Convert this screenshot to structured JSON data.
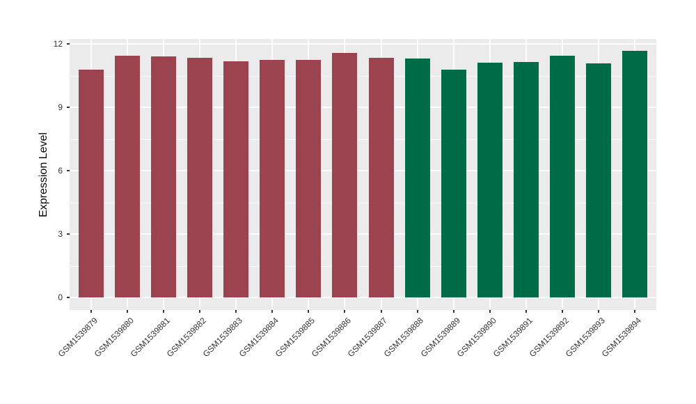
{
  "chart_data": {
    "type": "bar",
    "title": "",
    "xlabel": "",
    "ylabel": "Expression Level",
    "categories": [
      "GSM1539879",
      "GSM1539880",
      "GSM1539881",
      "GSM1539882",
      "GSM1539883",
      "GSM1539884",
      "GSM1539885",
      "GSM1539886",
      "GSM1539887",
      "GSM1539888",
      "GSM1539889",
      "GSM1539890",
      "GSM1539891",
      "GSM1539892",
      "GSM1539893",
      "GSM1539894"
    ],
    "values": [
      10.79,
      11.44,
      11.42,
      11.34,
      11.18,
      11.23,
      11.23,
      11.56,
      11.34,
      11.31,
      10.79,
      11.12,
      11.15,
      11.45,
      11.07,
      11.67
    ],
    "bar_colors": [
      "#9B4450",
      "#9B4450",
      "#9B4450",
      "#9B4450",
      "#9B4450",
      "#9B4450",
      "#9B4450",
      "#9B4450",
      "#9B4450",
      "#006B47",
      "#006B47",
      "#006B47",
      "#006B47",
      "#006B47",
      "#006B47",
      "#006B47"
    ],
    "palette": {
      "group1_red": "#9B4450",
      "group2_green": "#006B47"
    },
    "ylim": [
      0,
      12.2
    ],
    "yticks": [
      0,
      3,
      6,
      9,
      12
    ],
    "ytick_labels": [
      "0",
      "3",
      "6",
      "9",
      "12"
    ],
    "minor_yticks": [
      1.5,
      4.5,
      7.5,
      10.5
    ],
    "grid": "on",
    "legend": "none",
    "panel_background": "#EBEBEB",
    "gridline_color": "#FFFFFF",
    "axis_text_color": "#333333",
    "x_label_rotation_deg": 45
  }
}
